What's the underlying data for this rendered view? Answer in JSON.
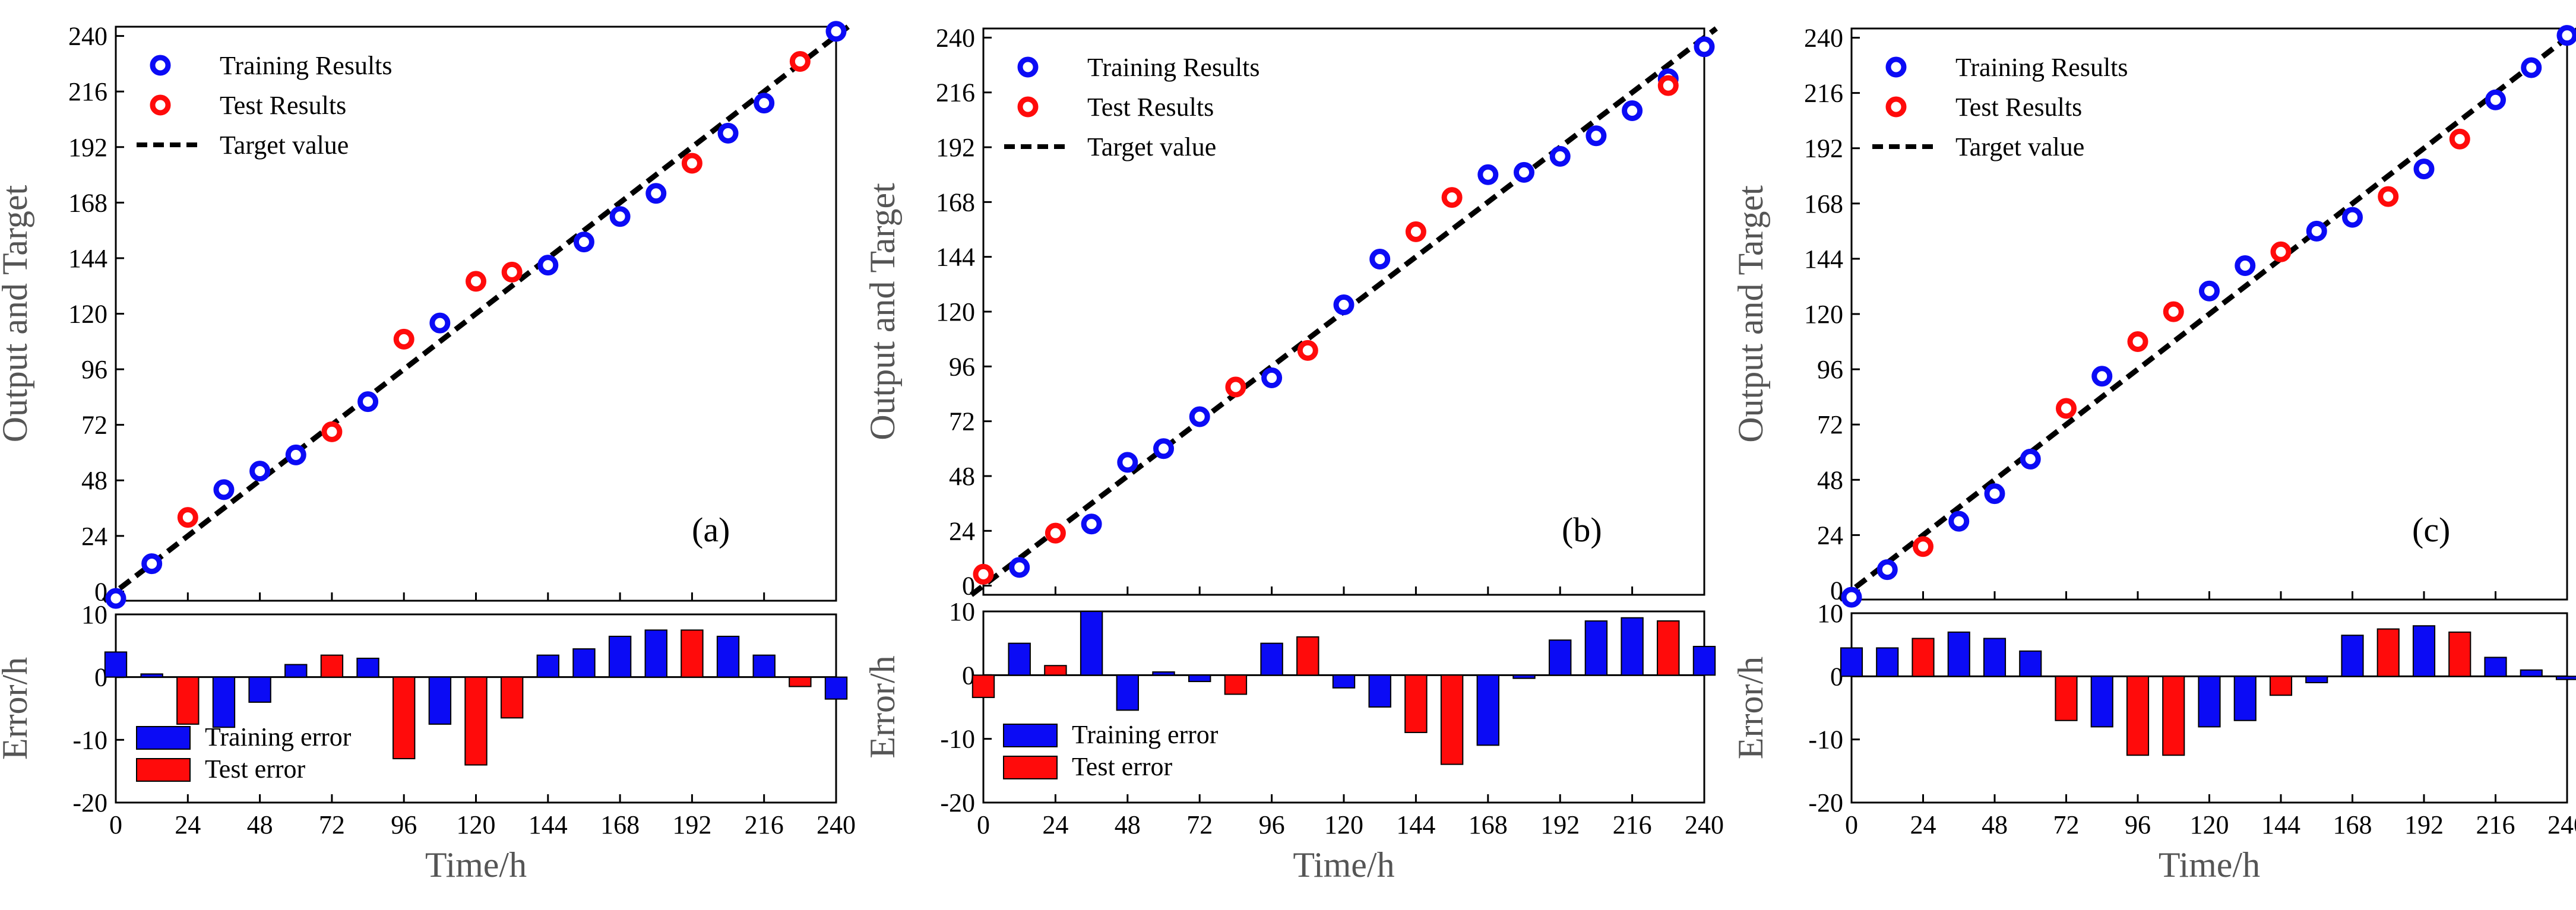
{
  "colors": {
    "training": "#0b0bf5",
    "test": "#ff0b0b",
    "target": "#000000"
  },
  "legend_top": {
    "training": "Training Results",
    "test": "Test Results",
    "target": "Target value"
  },
  "legend_bottom": {
    "training": "Training error",
    "test": "Test error"
  },
  "chart_data": [
    {
      "type": "scatter",
      "panel": "(a)",
      "ylabel": "Output and Target",
      "xlabel": "Time/h",
      "error_ylabel": "Error/h",
      "xlim": [
        0,
        240
      ],
      "ylim": [
        -4,
        244
      ],
      "error_ylim": [
        -20,
        10
      ],
      "x_ticks": [
        0,
        24,
        48,
        72,
        96,
        120,
        144,
        168,
        192,
        216,
        240
      ],
      "y_ticks": [
        0,
        24,
        48,
        72,
        96,
        120,
        144,
        168,
        192,
        216,
        240
      ],
      "error_ticks": [
        10,
        0,
        -10,
        -20
      ],
      "grid": false,
      "series": [
        {
          "name": "Training Results",
          "x": [
            0,
            12,
            36,
            48,
            60,
            84,
            108,
            144,
            156,
            168,
            180,
            204,
            216,
            240
          ],
          "y": [
            -3,
            12,
            44,
            52,
            59,
            82,
            116,
            141,
            151,
            162,
            172,
            198,
            211,
            242
          ]
        },
        {
          "name": "Test Results",
          "x": [
            24,
            72,
            96,
            120,
            132,
            192,
            228
          ],
          "y": [
            32,
            69,
            109,
            134,
            138,
            185,
            229
          ]
        },
        {
          "name": "Target value",
          "x": [
            -4,
            244
          ],
          "y": [
            -4,
            244
          ]
        }
      ],
      "errors": [
        {
          "name": "Training error",
          "x": [
            0,
            12,
            36,
            48,
            60,
            84,
            108,
            144,
            156,
            168,
            180,
            204,
            216,
            240
          ],
          "y": [
            4,
            0.5,
            -8,
            -4,
            2,
            3,
            -7.5,
            3.5,
            4.5,
            6.5,
            7.5,
            6.5,
            3.5,
            -3.5
          ]
        },
        {
          "name": "Test error",
          "x": [
            24,
            72,
            96,
            120,
            132,
            192,
            228
          ],
          "y": [
            -7.5,
            3.5,
            -13,
            -14,
            -6.5,
            7.5,
            -1.5
          ]
        }
      ]
    },
    {
      "type": "scatter",
      "panel": "(b)",
      "ylabel": "Output and Target",
      "xlabel": "Time/h",
      "error_ylabel": "Error/h",
      "xlim": [
        0,
        240
      ],
      "ylim": [
        -4,
        244
      ],
      "error_ylim": [
        -20,
        10
      ],
      "x_ticks": [
        0,
        24,
        48,
        72,
        96,
        120,
        144,
        168,
        192,
        216,
        240
      ],
      "y_ticks": [
        0,
        24,
        48,
        72,
        96,
        120,
        144,
        168,
        192,
        216,
        240
      ],
      "error_ticks": [
        10,
        0,
        -10,
        -20
      ],
      "grid": false,
      "series": [
        {
          "name": "Training Results",
          "x": [
            12,
            36,
            48,
            60,
            72,
            96,
            120,
            132,
            168,
            180,
            192,
            204,
            216,
            228,
            240
          ],
          "y": [
            8,
            27,
            54,
            60,
            74,
            91,
            123,
            143,
            180,
            181,
            188,
            197,
            208,
            222,
            236
          ]
        },
        {
          "name": "Test Results",
          "x": [
            0,
            24,
            84,
            108,
            144,
            156,
            228
          ],
          "y": [
            5,
            23,
            87,
            103,
            155,
            170,
            219
          ]
        },
        {
          "name": "Target value",
          "x": [
            -4,
            244
          ],
          "y": [
            -4,
            244
          ]
        }
      ],
      "errors": [
        {
          "name": "Training error",
          "x": [
            12,
            36,
            48,
            60,
            72,
            96,
            120,
            132,
            168,
            180,
            192,
            204,
            216,
            228,
            240
          ],
          "y": [
            5,
            10,
            -5.5,
            0.5,
            -1,
            5,
            -2,
            -5,
            -11,
            -0.5,
            5.5,
            8.5,
            9,
            8.5,
            4.5
          ]
        },
        {
          "name": "Test error",
          "x": [
            0,
            24,
            84,
            108,
            144,
            156,
            228
          ],
          "y": [
            -3.5,
            1.5,
            -3,
            6,
            -9,
            -14,
            8.5
          ]
        }
      ]
    },
    {
      "type": "scatter",
      "panel": "(c)",
      "ylabel": "Output and Target",
      "xlabel": "Time/h",
      "error_ylabel": "Error/h",
      "xlim": [
        0,
        240
      ],
      "ylim": [
        -4,
        244
      ],
      "error_ylim": [
        -20,
        10
      ],
      "x_ticks": [
        0,
        24,
        48,
        72,
        96,
        120,
        144,
        168,
        192,
        216,
        240
      ],
      "y_ticks": [
        0,
        24,
        48,
        72,
        96,
        120,
        144,
        168,
        192,
        216,
        240
      ],
      "error_ticks": [
        10,
        0,
        -10,
        -20
      ],
      "grid": false,
      "series": [
        {
          "name": "Training Results",
          "x": [
            0,
            12,
            36,
            48,
            60,
            84,
            120,
            132,
            156,
            168,
            192,
            216,
            228,
            240
          ],
          "y": [
            -3,
            9,
            30,
            42,
            57,
            93,
            130,
            141,
            156,
            162,
            183,
            213,
            227,
            241
          ]
        },
        {
          "name": "Test Results",
          "x": [
            24,
            72,
            96,
            108,
            144,
            180,
            204
          ],
          "y": [
            19,
            79,
            108,
            121,
            147,
            171,
            196
          ]
        },
        {
          "name": "Target value",
          "x": [
            -4,
            244
          ],
          "y": [
            -4,
            244
          ]
        }
      ],
      "errors": [
        {
          "name": "Training error",
          "x": [
            0,
            12,
            36,
            48,
            60,
            84,
            120,
            132,
            156,
            168,
            192,
            216,
            228,
            240
          ],
          "y": [
            4.5,
            4.5,
            7,
            6,
            4,
            -8,
            -8,
            -7,
            -1,
            6.5,
            8,
            3,
            1,
            -0.5
          ]
        },
        {
          "name": "Test error",
          "x": [
            24,
            72,
            96,
            108,
            144,
            180,
            204
          ],
          "y": [
            6,
            -7,
            -12.5,
            -12.5,
            -3,
            7.5,
            7
          ]
        }
      ]
    }
  ]
}
